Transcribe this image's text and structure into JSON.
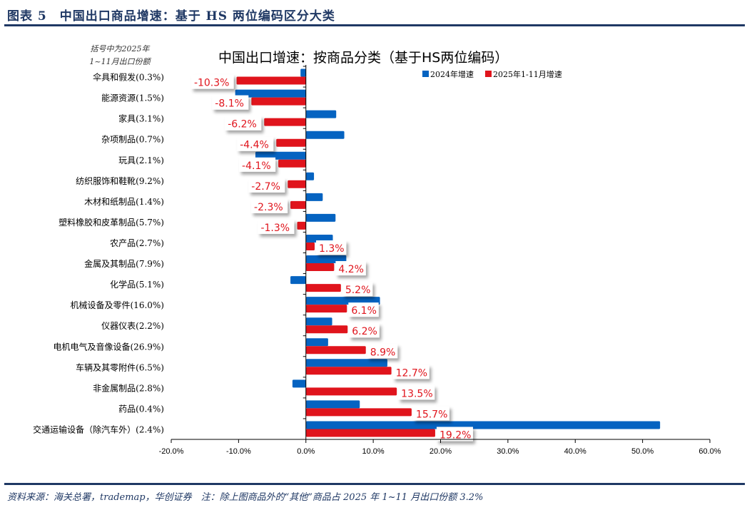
{
  "figure": {
    "caption": "图表 5　中国出口商品增速：基于 HS 两位编码区分大类",
    "footnote": "资料来源：海关总署，trademap，华创证券　注：除上图商品外的“其他”商品占 2025 年 1~11 月出口份额 3.2%"
  },
  "chart_data": {
    "type": "bar",
    "orientation": "horizontal",
    "title": "中国出口增速：按商品分类（基于HS两位编码）",
    "note": [
      "括号中为2025年",
      "1~11月出口份额"
    ],
    "xlabel": "",
    "ylabel": "",
    "xlim": [
      -20,
      60
    ],
    "x_ticks": [
      "-20.0%",
      "-10.0%",
      "0.0%",
      "10.0%",
      "20.0%",
      "30.0%",
      "40.0%",
      "50.0%",
      "60.0%"
    ],
    "x_tick_values": [
      -20,
      -10,
      0,
      10,
      20,
      30,
      40,
      50,
      60
    ],
    "legend_position": "top-right",
    "grid": false,
    "categories": [
      "伞具和假发(0.3%)",
      "能源资源(1.5%)",
      "家具(3.1%)",
      "杂项制品(0.7%)",
      "玩具(2.1%)",
      "纺织服饰和鞋靴(9.2%)",
      "木材和纸制品(1.4%)",
      "塑料橡胶和皮革制品(5.7%)",
      "农产品(2.7%)",
      "金属及其制品(7.9%)",
      "化学品(5.1%)",
      "机械设备及零件(16.0%)",
      "仪器仪表(2.2%)",
      "电机电气及音像设备(26.9%)",
      "车辆及其零附件(6.5%)",
      "非金属制品(2.8%)",
      "药品(0.4%)",
      "交通运输设备（除汽车外）(2.4%)"
    ],
    "series": [
      {
        "name": "2024年增速",
        "color": "#0563c1",
        "values": [
          -0.8,
          -10.5,
          4.5,
          5.7,
          -7.5,
          1.2,
          2.5,
          4.4,
          4.0,
          6.0,
          -2.3,
          11.0,
          3.9,
          3.3,
          12.1,
          -2.0,
          8.0,
          52.6
        ]
      },
      {
        "name": "2025年1-11月增速",
        "color": "#e0141c",
        "values": [
          -10.3,
          -8.1,
          -6.2,
          -4.4,
          -4.1,
          -2.7,
          -2.3,
          -1.3,
          1.3,
          4.2,
          5.2,
          6.1,
          6.2,
          8.9,
          12.7,
          13.5,
          15.7,
          19.2
        ],
        "data_labels": [
          "-10.3%",
          "-8.1%",
          "-6.2%",
          "-4.4%",
          "-4.1%",
          "-2.7%",
          "-2.3%",
          "-1.3%",
          "1.3%",
          "4.2%",
          "5.2%",
          "6.1%",
          "6.2%",
          "8.9%",
          "12.7%",
          "13.5%",
          "15.7%",
          "19.2%"
        ]
      }
    ]
  }
}
